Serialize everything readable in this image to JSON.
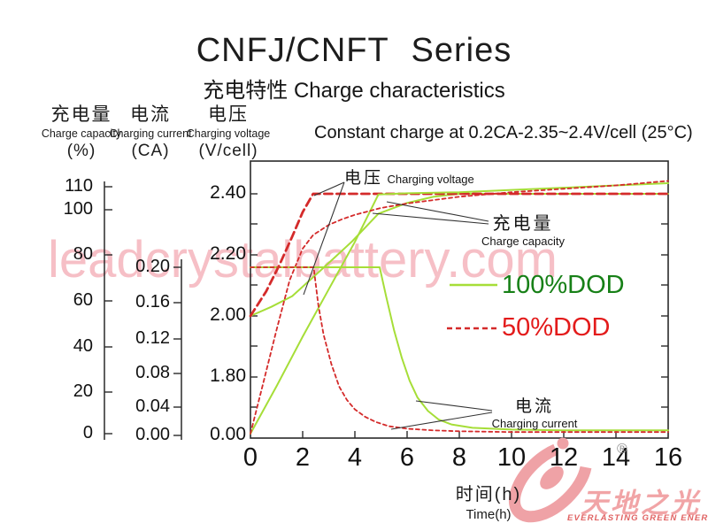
{
  "title": "CNFJ/CNFT Series",
  "subtitle": "充电特性 Charge characteristics",
  "condition": "Constant charge at 0.2CA-2.35~2.4V/cell (25°C)",
  "watermark": "leadcrystalbattery.com",
  "axes": {
    "capacity": {
      "label_zh": "充电量",
      "label_en": "Charge capacity",
      "unit": "(%)",
      "ticks": [
        "110",
        "100",
        "80",
        "60",
        "40",
        "20",
        "0"
      ]
    },
    "current": {
      "label_zh": "电流",
      "label_en": "Charging current",
      "unit": "(CA)",
      "ticks": [
        "0.20",
        "0.16",
        "0.12",
        "0.08",
        "0.04",
        "0.00"
      ]
    },
    "voltage": {
      "label_zh": "电压",
      "label_en": "Charging voltage",
      "unit": "(V/cell)",
      "ticks": [
        "2.40",
        "2.20",
        "2.00",
        "1.80",
        "0.00"
      ]
    },
    "time": {
      "label_zh": "时间(h)",
      "label_en": "Time(h)",
      "ticks": [
        "0",
        "2",
        "4",
        "6",
        "8",
        "10",
        "12",
        "14",
        "16"
      ]
    }
  },
  "legend": [
    {
      "label": "100%DOD",
      "line_color": "#a6de38",
      "text_color": "#178017",
      "style": "solid"
    },
    {
      "label": "50%DOD",
      "line_color": "#d42a2a",
      "text_color": "#e31b1b",
      "style": "dashed"
    }
  ],
  "annotations": {
    "voltage": {
      "zh": "电压",
      "en": "Charging voltage"
    },
    "capacity": {
      "zh": "充电量",
      "en": "Charge capacity"
    },
    "current": {
      "zh": "电流",
      "en": "Charging current"
    }
  },
  "logo": {
    "name_zh": "天地之光",
    "tagline": "EVERLASTING GREEN ENERGY",
    "reg": "®"
  },
  "colors": {
    "green_curve": "#a6de38",
    "red_curve": "#d42a2a",
    "frame": "#2a2a2a",
    "leader": "#333333"
  },
  "chart_data": {
    "type": "line",
    "title": "Constant charge at 0.2CA-2.35~2.4V/cell (25°C)",
    "xlabel": "时间(h) Time(h)",
    "x_unit": "hours",
    "x_range": [
      0,
      16
    ],
    "grid": false,
    "legend_position": "right-inside",
    "y_axes": [
      {
        "name": "capacity",
        "unit": "%",
        "range": [
          0,
          110
        ]
      },
      {
        "name": "current",
        "unit": "CA",
        "range": [
          0.0,
          0.2
        ]
      },
      {
        "name": "voltage",
        "unit": "V/cell",
        "range": [
          1.8,
          2.4
        ],
        "broken_at_zero": true
      }
    ],
    "series": [
      {
        "name": "100%DOD charging voltage",
        "dod": "100%DOD",
        "quantity": "voltage",
        "unit": "V/cell",
        "style": "solid green",
        "points": [
          [
            0,
            2.0
          ],
          [
            0.8,
            2.03
          ],
          [
            1.6,
            2.065
          ],
          [
            2.7,
            2.15
          ],
          [
            3.9,
            2.245
          ],
          [
            4.9,
            2.335
          ],
          [
            6,
            2.37
          ],
          [
            7,
            2.39
          ],
          [
            8,
            2.4
          ],
          [
            16,
            2.4
          ]
        ]
      },
      {
        "name": "50%DOD charging voltage",
        "dod": "50%DOD",
        "quantity": "voltage",
        "unit": "V/cell",
        "style": "dashed red",
        "points": [
          [
            0,
            2.0
          ],
          [
            0.6,
            2.08
          ],
          [
            1.1,
            2.165
          ],
          [
            1.6,
            2.26
          ],
          [
            2.0,
            2.34
          ],
          [
            2.4,
            2.4
          ],
          [
            16,
            2.4
          ]
        ]
      },
      {
        "name": "100%DOD charge capacity",
        "dod": "100%DOD",
        "quantity": "capacity",
        "unit": "%",
        "style": "solid green",
        "points": [
          [
            0,
            0
          ],
          [
            1,
            21
          ],
          [
            2,
            43
          ],
          [
            3,
            64
          ],
          [
            4,
            85
          ],
          [
            4.9,
            106
          ],
          [
            6,
            106.5
          ],
          [
            8,
            107
          ],
          [
            10,
            108
          ],
          [
            12,
            109
          ],
          [
            14,
            110
          ],
          [
            16,
            111
          ]
        ]
      },
      {
        "name": "50%DOD charge capacity",
        "dod": "50%DOD",
        "quantity": "capacity",
        "unit": "%",
        "style": "dotted red",
        "points": [
          [
            0,
            0
          ],
          [
            0.5,
            23
          ],
          [
            1,
            46
          ],
          [
            1.5,
            68
          ],
          [
            2,
            82
          ],
          [
            2.4,
            88
          ],
          [
            3,
            92.5
          ],
          [
            3.5,
            95
          ],
          [
            4,
            97
          ],
          [
            5,
            100
          ],
          [
            6,
            102
          ],
          [
            8,
            105
          ],
          [
            10,
            107
          ],
          [
            12,
            108.5
          ],
          [
            14,
            110
          ],
          [
            16,
            112
          ]
        ]
      },
      {
        "name": "100%DOD charging current",
        "dod": "100%DOD",
        "quantity": "current",
        "unit": "CA",
        "style": "solid green",
        "points": [
          [
            0,
            0.2
          ],
          [
            4.95,
            0.2
          ],
          [
            5.2,
            0.165
          ],
          [
            5.5,
            0.125
          ],
          [
            5.8,
            0.092
          ],
          [
            6.1,
            0.065
          ],
          [
            6.4,
            0.045
          ],
          [
            6.8,
            0.029
          ],
          [
            7.2,
            0.019
          ],
          [
            7.7,
            0.013
          ],
          [
            8.5,
            0.009
          ],
          [
            10,
            0.007
          ],
          [
            12,
            0.006
          ],
          [
            14,
            0.006
          ],
          [
            16,
            0.006
          ]
        ]
      },
      {
        "name": "50%DOD charging current",
        "dod": "50%DOD",
        "quantity": "current",
        "unit": "CA",
        "style": "dotted red",
        "points": [
          [
            0,
            0.2
          ],
          [
            2.42,
            0.2
          ],
          [
            2.6,
            0.155
          ],
          [
            2.8,
            0.12
          ],
          [
            3.1,
            0.085
          ],
          [
            3.4,
            0.058
          ],
          [
            3.7,
            0.042
          ],
          [
            4.0,
            0.031
          ],
          [
            4.4,
            0.022
          ],
          [
            4.8,
            0.016
          ],
          [
            5.3,
            0.011
          ],
          [
            6,
            0.008
          ],
          [
            7,
            0.006
          ],
          [
            8,
            0.005
          ],
          [
            10,
            0.004
          ],
          [
            16,
            0.004
          ]
        ]
      }
    ]
  }
}
